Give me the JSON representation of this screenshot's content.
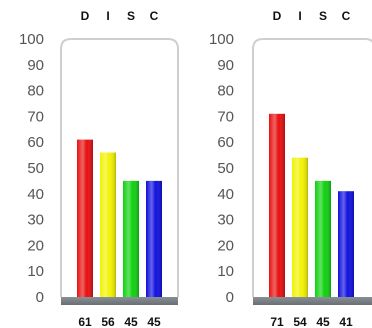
{
  "chart_data": [
    {
      "type": "bar",
      "categories": [
        "D",
        "I",
        "S",
        "C"
      ],
      "values": [
        61,
        56,
        45,
        45
      ],
      "value_labels": [
        "61",
        "56",
        "45",
        "45"
      ],
      "ylim": [
        0,
        100
      ],
      "yticks": [
        "0",
        "10",
        "20",
        "30",
        "40",
        "50",
        "60",
        "70",
        "80",
        "90",
        "100"
      ],
      "colors": [
        "#e81010",
        "#f2f200",
        "#10d010",
        "#1010e0"
      ]
    },
    {
      "type": "bar",
      "categories": [
        "D",
        "I",
        "S",
        "C"
      ],
      "values": [
        71,
        54,
        45,
        41
      ],
      "value_labels": [
        "71",
        "54",
        "45",
        "41"
      ],
      "ylim": [
        0,
        100
      ],
      "yticks": [
        "0",
        "10",
        "20",
        "30",
        "40",
        "50",
        "60",
        "70",
        "80",
        "90",
        "100"
      ],
      "colors": [
        "#e81010",
        "#f2f200",
        "#10d010",
        "#1010e0"
      ]
    }
  ]
}
